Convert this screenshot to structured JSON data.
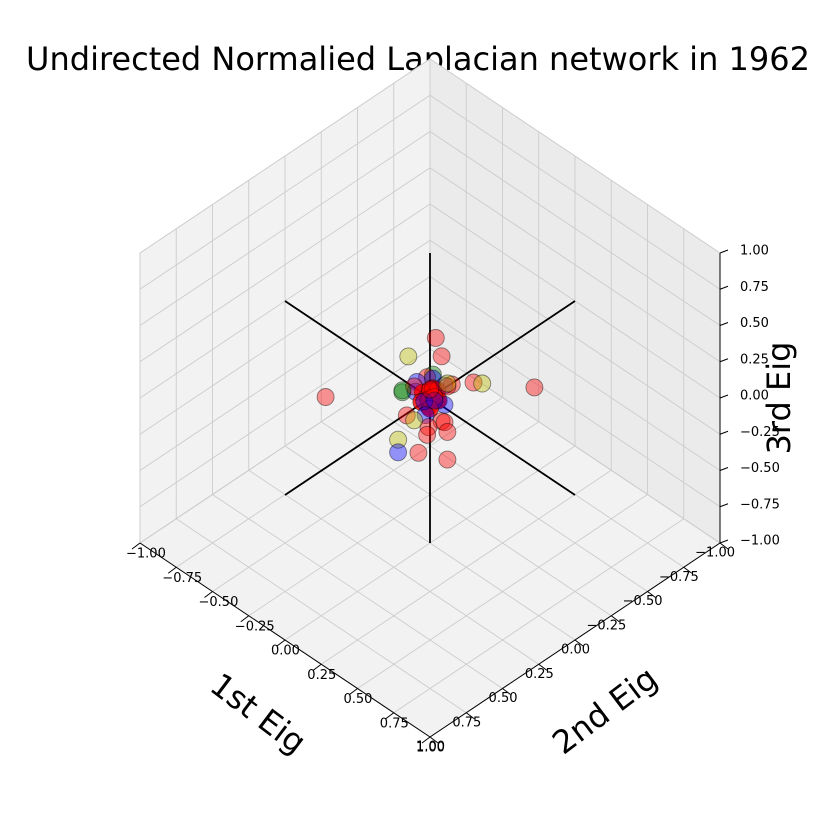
{
  "chart_data": {
    "type": "scatter",
    "projection": "3d",
    "title": "Undirected Normalied Laplacian network in 1962",
    "xlabel": "1st Eig",
    "ylabel": "2nd Eig",
    "zlabel": "3rd Eig",
    "xlim": [
      -1.0,
      1.0
    ],
    "ylim": [
      -1.0,
      1.0
    ],
    "zlim": [
      -1.0,
      1.0
    ],
    "grid": true,
    "x_ticks": [
      "1.00",
      "0.75",
      "0.50",
      "0.25",
      "0.00",
      "−0.25",
      "−0.50",
      "−0.75",
      "−1.00"
    ],
    "y_ticks": [
      "−1.00",
      "−0.75",
      "−0.50",
      "−0.25",
      "0.00",
      "0.25",
      "0.50",
      "0.75",
      "1.00"
    ],
    "z_ticks": [
      "1.00",
      "0.75",
      "0.50",
      "0.25",
      "0.00",
      "−0.25",
      "−0.50",
      "−0.75",
      "−1.00"
    ],
    "reference_axes": {
      "color": "#000000",
      "extent": 1.0
    },
    "series": [
      {
        "color": "#ff0000",
        "alpha": 0.4,
        "points": [
          [
            -0.34,
            0.38,
            0.1
          ],
          [
            0.34,
            -0.38,
            -0.02
          ],
          [
            0.12,
            0.12,
            0.22
          ],
          [
            -0.24,
            -0.16,
            0.02
          ],
          [
            0.3,
            0.22,
            -0.03
          ],
          [
            -0.3,
            -0.26,
            0.04
          ],
          [
            0.22,
            0.34,
            -0.05
          ],
          [
            0.07,
            -0.04,
            0.1
          ],
          [
            -0.06,
            0.06,
            0.08
          ],
          [
            0.06,
            0.16,
            -0.02
          ],
          [
            -0.1,
            0.05,
            0.06
          ],
          [
            0.14,
            -0.02,
            -0.04
          ],
          [
            0.02,
            0.1,
            -0.08
          ],
          [
            -0.04,
            -0.02,
            0.02
          ],
          [
            0.08,
            0.07,
            -0.1
          ],
          [
            0.14,
            0.12,
            -0.08
          ],
          [
            -0.06,
            -0.08,
            0.05
          ],
          [
            0.1,
            0.22,
            -0.02
          ],
          [
            0.0,
            0.02,
            0.08
          ],
          [
            -0.2,
            0.1,
            0.04
          ]
        ]
      },
      {
        "color": "#ff0000",
        "alpha": 0.8,
        "points": [
          [
            0.0,
            0.0,
            0.0
          ],
          [
            0.03,
            0.02,
            0.02
          ],
          [
            -0.03,
            -0.02,
            0.01
          ],
          [
            0.02,
            -0.03,
            0.03
          ],
          [
            -0.02,
            0.03,
            -0.01
          ],
          [
            0.04,
            0.04,
            -0.02
          ],
          [
            -0.04,
            -0.03,
            -0.03
          ],
          [
            0.01,
            0.04,
            0.04
          ],
          [
            0.05,
            -0.01,
            0.0
          ],
          [
            -0.01,
            0.05,
            0.01
          ],
          [
            0.02,
            0.01,
            -0.04
          ],
          [
            -0.05,
            0.0,
            0.02
          ]
        ]
      },
      {
        "color": "#0000ff",
        "alpha": 0.4,
        "points": [
          [
            0.06,
            0.02,
            0.03
          ],
          [
            -0.05,
            -0.04,
            0.0
          ],
          [
            0.04,
            -0.06,
            0.03
          ],
          [
            -0.03,
            0.07,
            -0.02
          ],
          [
            0.08,
            0.05,
            -0.03
          ],
          [
            -0.08,
            -0.06,
            0.04
          ],
          [
            0.3,
            0.08,
            -0.12
          ],
          [
            0.0,
            -0.09,
            0.05
          ],
          [
            -0.07,
            0.03,
            0.06
          ],
          [
            0.05,
            0.08,
            0.07
          ]
        ]
      },
      {
        "color": "#bfbf00",
        "alpha": 0.4,
        "points": [
          [
            -0.18,
            0.18,
            0.1
          ],
          [
            0.28,
            0.06,
            -0.06
          ],
          [
            0.2,
            0.09,
            0.04
          ],
          [
            -0.05,
            -0.2,
            0.12
          ],
          [
            0.0,
            0.12,
            0.18
          ]
        ]
      },
      {
        "color": "#008000",
        "alpha": 0.4,
        "points": [
          [
            -0.16,
            -0.14,
            -0.04
          ],
          [
            0.13,
            -0.06,
            0.1
          ],
          [
            0.08,
            -0.11,
            0.02
          ]
        ]
      }
    ]
  }
}
